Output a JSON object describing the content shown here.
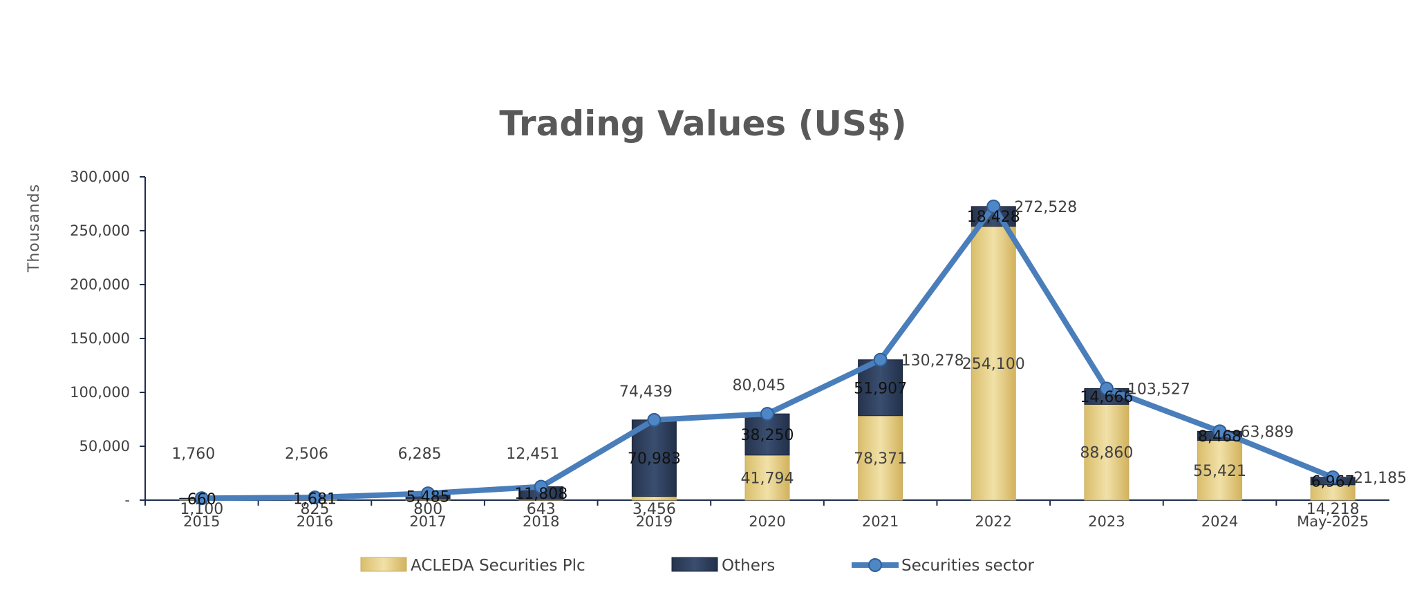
{
  "chart_data": {
    "type": "bar",
    "title": "Trading Values (US$)",
    "ylabel": "Thousands",
    "xlabel": "",
    "ylim": [
      0,
      300000
    ],
    "y_ticks": [
      {
        "value": 0,
        "label": "-"
      },
      {
        "value": 50000,
        "label": "50,000"
      },
      {
        "value": 100000,
        "label": "100,000"
      },
      {
        "value": 150000,
        "label": "150,000"
      },
      {
        "value": 200000,
        "label": "200,000"
      },
      {
        "value": 250000,
        "label": "250,000"
      },
      {
        "value": 300000,
        "label": "300,000"
      }
    ],
    "categories": [
      "2015",
      "2016",
      "2017",
      "2018",
      "2019",
      "2020",
      "2021",
      "2022",
      "2023",
      "2024",
      "May-2025"
    ],
    "legend_position": "bottom",
    "grid": false,
    "series": [
      {
        "name": "ACLEDA Securities Plc",
        "kind": "stacked-bar",
        "color": "#e6cf8a",
        "values": [
          1100,
          825,
          800,
          643,
          3456,
          41794,
          78371,
          254100,
          88860,
          55421,
          14218
        ],
        "labels": [
          "1,100",
          "825",
          "800",
          "643",
          "3,456",
          "41,794",
          "78,371",
          "254,100",
          "88,860",
          "55,421",
          "14,218"
        ]
      },
      {
        "name": "Others",
        "kind": "stacked-bar",
        "color": "#2e3f5c",
        "values": [
          660,
          1681,
          5485,
          11808,
          70983,
          38250,
          51907,
          18428,
          14666,
          8468,
          6967
        ],
        "labels": [
          "660",
          "1,681",
          "5,485",
          "11,808",
          "70,983",
          "38,250",
          "51,907",
          "18,428",
          "14,666",
          "8,468",
          "6,967"
        ]
      },
      {
        "name": "Securities sector",
        "kind": "line",
        "color": "#4a7ebb",
        "values": [
          1760,
          2506,
          6285,
          12451,
          74439,
          80045,
          130278,
          272528,
          103527,
          63889,
          21185
        ],
        "labels": [
          "1,760",
          "2,506",
          "6,285",
          "12,451",
          "74,439",
          "80,045",
          "130,278",
          "272,528",
          "103,527",
          "63,889",
          "21,185"
        ]
      }
    ]
  }
}
